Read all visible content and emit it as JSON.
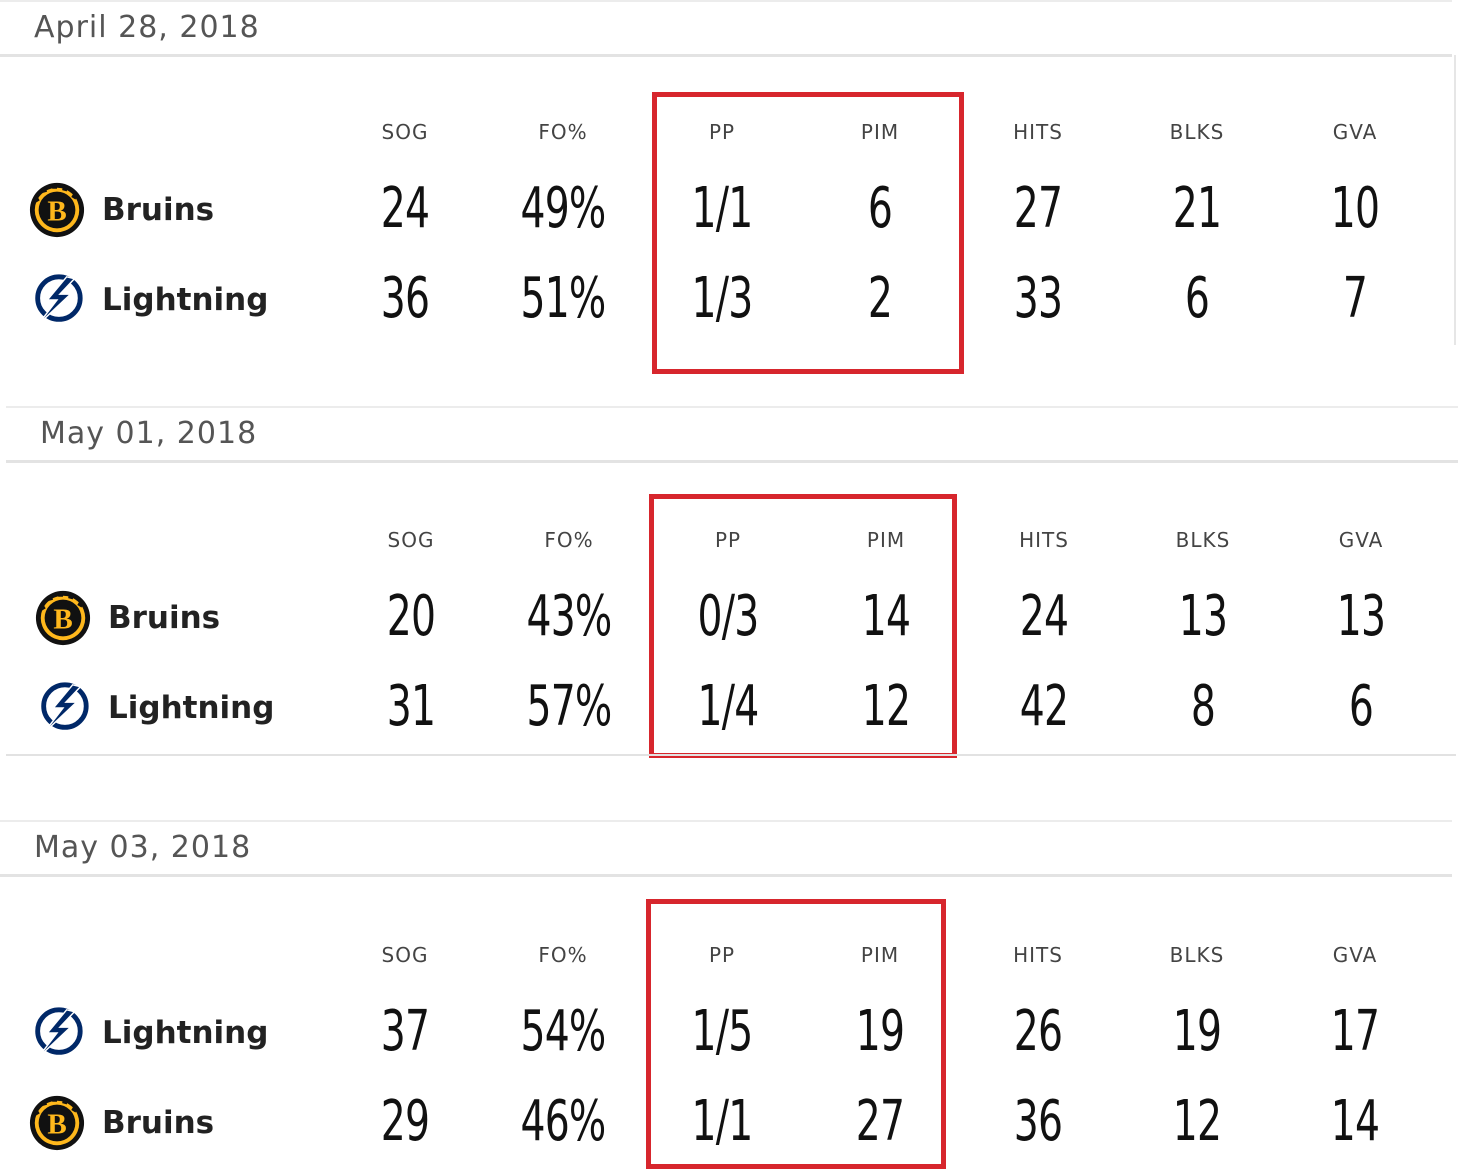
{
  "columns": [
    "SOG",
    "FO%",
    "PP",
    "PIM",
    "HITS",
    "BLKS",
    "GVA"
  ],
  "highlight_color": "#d7262d",
  "games": [
    {
      "date": "April 28, 2018",
      "rows": [
        {
          "team": "Bruins",
          "logo": "bruins-logo",
          "values": [
            "24",
            "49%",
            "1/1",
            "6",
            "27",
            "21",
            "10"
          ]
        },
        {
          "team": "Lightning",
          "logo": "lightning-logo",
          "values": [
            "36",
            "51%",
            "1/3",
            "2",
            "33",
            "6",
            "7"
          ]
        }
      ]
    },
    {
      "date": "May 01, 2018",
      "rows": [
        {
          "team": "Bruins",
          "logo": "bruins-logo",
          "values": [
            "20",
            "43%",
            "0/3",
            "14",
            "24",
            "13",
            "13"
          ]
        },
        {
          "team": "Lightning",
          "logo": "lightning-logo",
          "values": [
            "31",
            "57%",
            "1/4",
            "12",
            "42",
            "8",
            "6"
          ]
        }
      ]
    },
    {
      "date": "May 03, 2018",
      "rows": [
        {
          "team": "Lightning",
          "logo": "lightning-logo",
          "values": [
            "37",
            "54%",
            "1/5",
            "19",
            "26",
            "19",
            "17"
          ]
        },
        {
          "team": "Bruins",
          "logo": "bruins-logo",
          "values": [
            "29",
            "46%",
            "1/1",
            "27",
            "36",
            "12",
            "14"
          ]
        }
      ]
    }
  ]
}
